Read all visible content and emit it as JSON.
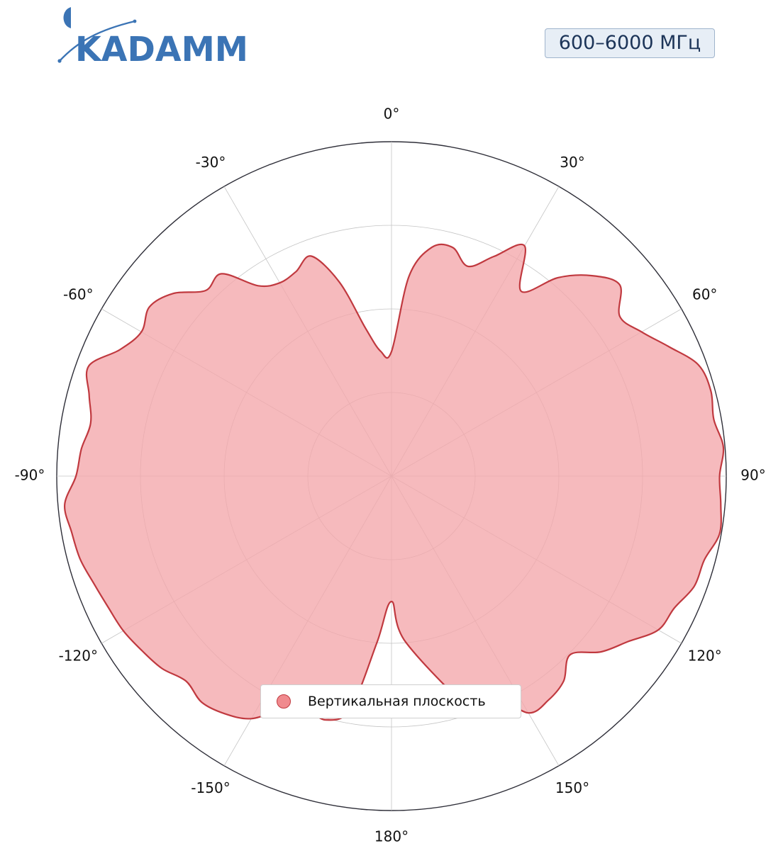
{
  "header": {
    "brand": "KADAMM",
    "frequency_badge": "600–6000 МГц"
  },
  "colors": {
    "brand_blue": "#3b74b5",
    "fill": "#f4a6aa",
    "line": "#c0393f"
  },
  "chart_data": {
    "type": "polar-area",
    "angle_unit": "degrees",
    "angle_zero": "top",
    "angle_direction": "clockwise",
    "angle_ticks": [
      0,
      30,
      60,
      90,
      120,
      150,
      180,
      -150,
      -120,
      -90,
      -60,
      -30
    ],
    "angle_tick_labels": [
      "0°",
      "30°",
      "60°",
      "90°",
      "120°",
      "150°",
      "180°",
      "-150°",
      "-120°",
      "-90°",
      "-60°",
      "-30°"
    ],
    "radial_range": [
      0,
      4
    ],
    "radial_gridlines": [
      1,
      2,
      3,
      4
    ],
    "radial_tick_labels": "none",
    "grid": true,
    "legend_position": "bottom-center",
    "series": [
      {
        "name": "Вертикальная плоскость",
        "theta": [
          0,
          5,
          10,
          15,
          20,
          25,
          30,
          35,
          40,
          45,
          50,
          55,
          60,
          65,
          70,
          75,
          80,
          85,
          90,
          95,
          100,
          105,
          110,
          115,
          120,
          125,
          130,
          135,
          140,
          145,
          150,
          155,
          160,
          175,
          180,
          185,
          190,
          195,
          200,
          205,
          210,
          215,
          220,
          225,
          230,
          235,
          240,
          245,
          250,
          255,
          260,
          265,
          270,
          275,
          280,
          285,
          290,
          295,
          300,
          305,
          310,
          315,
          320,
          325,
          330,
          335,
          340,
          345,
          350,
          355
        ],
        "r": [
          1.49,
          2.4,
          2.78,
          2.83,
          2.67,
          2.9,
          3.18,
          2.7,
          3.1,
          3.39,
          3.56,
          3.33,
          3.45,
          3.66,
          3.9,
          3.95,
          3.91,
          3.98,
          3.92,
          3.95,
          3.98,
          3.87,
          3.85,
          3.73,
          3.68,
          3.45,
          3.27,
          3.02,
          3.2,
          3.27,
          3.27,
          2.9,
          3.05,
          2.0,
          1.5,
          2.0,
          2.83,
          3.02,
          2.97,
          3.08,
          3.35,
          3.47,
          3.53,
          3.47,
          3.58,
          3.64,
          3.7,
          3.73,
          3.78,
          3.85,
          3.88,
          3.92,
          3.77,
          3.72,
          3.65,
          3.74,
          3.85,
          3.58,
          3.45,
          3.53,
          3.4,
          3.14,
          3.16,
          2.78,
          2.67,
          2.7,
          2.8,
          2.4,
          1.8,
          1.5
        ]
      }
    ]
  }
}
